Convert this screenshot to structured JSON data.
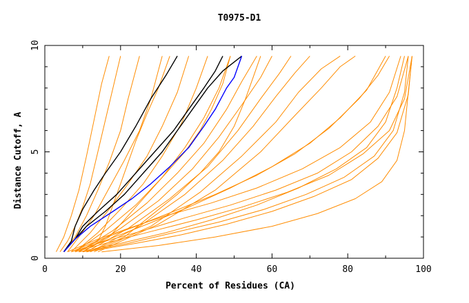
{
  "chart_data": {
    "type": "line",
    "title": "T0975-D1",
    "xlabel": "Percent of Residues (CA)",
    "ylabel": "Distance Cutoff, A",
    "xlim": [
      0,
      100
    ],
    "ylim": [
      0,
      10
    ],
    "x_ticks": [
      0,
      20,
      40,
      60,
      80,
      100
    ],
    "y_ticks": [
      0,
      5,
      10
    ],
    "grid": false,
    "colors": {
      "background_models": "#ff8c00",
      "highlight": "#000000",
      "best": "#0000ff"
    },
    "series": [
      {
        "color": "#ff8c00",
        "points": [
          [
            4,
            0.3
          ],
          [
            6,
            0.8
          ],
          [
            8,
            1.5
          ],
          [
            10,
            2.4
          ],
          [
            12,
            3.5
          ],
          [
            14,
            5.0
          ],
          [
            16,
            6.5
          ],
          [
            18,
            8.0
          ],
          [
            20,
            9.5
          ]
        ]
      },
      {
        "color": "#ff8c00",
        "points": [
          [
            3,
            0.3
          ],
          [
            5,
            1.0
          ],
          [
            7,
            2.0
          ],
          [
            9,
            3.2
          ],
          [
            11,
            4.8
          ],
          [
            13,
            6.5
          ],
          [
            15,
            8.2
          ],
          [
            17,
            9.5
          ]
        ]
      },
      {
        "color": "#ff8c00",
        "points": [
          [
            5,
            0.3
          ],
          [
            8,
            1.0
          ],
          [
            11,
            2.0
          ],
          [
            14,
            3.2
          ],
          [
            17,
            4.5
          ],
          [
            20,
            6.0
          ],
          [
            22,
            7.5
          ],
          [
            25,
            9.5
          ]
        ]
      },
      {
        "color": "#ff8c00",
        "points": [
          [
            6,
            0.3
          ],
          [
            9,
            1.0
          ],
          [
            13,
            2.0
          ],
          [
            17,
            3.3
          ],
          [
            21,
            4.6
          ],
          [
            25,
            6.0
          ],
          [
            28,
            7.5
          ],
          [
            31,
            9.5
          ]
        ]
      },
      {
        "color": "#ff8c00",
        "points": [
          [
            7,
            0.3
          ],
          [
            12,
            1.2
          ],
          [
            17,
            2.3
          ],
          [
            22,
            3.5
          ],
          [
            27,
            4.8
          ],
          [
            31,
            6.2
          ],
          [
            35,
            7.8
          ],
          [
            38,
            9.5
          ]
        ]
      },
      {
        "color": "#ff8c00",
        "points": [
          [
            8,
            0.3
          ],
          [
            14,
            1.2
          ],
          [
            20,
            2.3
          ],
          [
            26,
            3.5
          ],
          [
            31,
            4.8
          ],
          [
            36,
            6.3
          ],
          [
            40,
            8.0
          ],
          [
            43,
            9.5
          ]
        ]
      },
      {
        "color": "#ff8c00",
        "points": [
          [
            8,
            0.3
          ],
          [
            16,
            1.3
          ],
          [
            24,
            2.5
          ],
          [
            31,
            3.8
          ],
          [
            37,
            5.2
          ],
          [
            42,
            6.6
          ],
          [
            46,
            8.0
          ],
          [
            49,
            9.5
          ]
        ]
      },
      {
        "color": "#ff8c00",
        "points": [
          [
            9,
            0.3
          ],
          [
            18,
            1.3
          ],
          [
            27,
            2.6
          ],
          [
            35,
            4.0
          ],
          [
            42,
            5.4
          ],
          [
            48,
            7.0
          ],
          [
            52,
            8.3
          ],
          [
            56,
            9.5
          ]
        ]
      },
      {
        "color": "#ff8c00",
        "points": [
          [
            10,
            0.3
          ],
          [
            20,
            1.4
          ],
          [
            30,
            2.7
          ],
          [
            39,
            4.2
          ],
          [
            46,
            5.7
          ],
          [
            52,
            7.2
          ],
          [
            57,
            8.5
          ],
          [
            60,
            9.5
          ]
        ]
      },
      {
        "color": "#ff8c00",
        "points": [
          [
            11,
            0.3
          ],
          [
            22,
            1.4
          ],
          [
            33,
            2.8
          ],
          [
            43,
            4.3
          ],
          [
            51,
            6.0
          ],
          [
            57,
            7.5
          ],
          [
            62,
            8.7
          ],
          [
            65,
            9.5
          ]
        ]
      },
      {
        "color": "#ff8c00",
        "points": [
          [
            12,
            0.3
          ],
          [
            25,
            1.5
          ],
          [
            37,
            3.0
          ],
          [
            47,
            4.6
          ],
          [
            55,
            6.2
          ],
          [
            61,
            7.6
          ],
          [
            66,
            8.7
          ],
          [
            70,
            9.5
          ]
        ]
      },
      {
        "color": "#ff8c00",
        "points": [
          [
            13,
            0.3
          ],
          [
            28,
            1.5
          ],
          [
            41,
            3.1
          ],
          [
            52,
            4.8
          ],
          [
            61,
            6.4
          ],
          [
            67,
            7.8
          ],
          [
            73,
            8.9
          ],
          [
            78,
            9.5
          ]
        ]
      },
      {
        "color": "#ff8c00",
        "points": [
          [
            14,
            0.3
          ],
          [
            30,
            1.6
          ],
          [
            45,
            3.2
          ],
          [
            57,
            5.0
          ],
          [
            66,
            6.7
          ],
          [
            73,
            8.0
          ],
          [
            78,
            9.0
          ],
          [
            82,
            9.5
          ]
        ]
      },
      {
        "color": "#ff8c00",
        "points": [
          [
            6,
            0.3
          ],
          [
            14,
            0.9
          ],
          [
            22,
            1.4
          ],
          [
            32,
            2.0
          ],
          [
            44,
            2.6
          ],
          [
            56,
            3.3
          ],
          [
            68,
            4.2
          ],
          [
            78,
            5.2
          ],
          [
            86,
            6.4
          ],
          [
            91,
            7.8
          ],
          [
            94,
            9.5
          ]
        ]
      },
      {
        "color": "#ff8c00",
        "points": [
          [
            7,
            0.3
          ],
          [
            16,
            0.8
          ],
          [
            26,
            1.3
          ],
          [
            37,
            1.9
          ],
          [
            49,
            2.5
          ],
          [
            61,
            3.2
          ],
          [
            72,
            4.0
          ],
          [
            81,
            5.0
          ],
          [
            88,
            6.2
          ],
          [
            93,
            7.6
          ],
          [
            96,
            9.5
          ]
        ]
      },
      {
        "color": "#ff8c00",
        "points": [
          [
            8,
            0.3
          ],
          [
            18,
            0.8
          ],
          [
            29,
            1.3
          ],
          [
            40,
            1.8
          ],
          [
            52,
            2.4
          ],
          [
            64,
            3.1
          ],
          [
            75,
            3.9
          ],
          [
            84,
            4.9
          ],
          [
            91,
            6.0
          ],
          [
            95,
            7.5
          ],
          [
            97,
            9.5
          ]
        ]
      },
      {
        "color": "#ff8c00",
        "points": [
          [
            9,
            0.3
          ],
          [
            20,
            0.7
          ],
          [
            32,
            1.2
          ],
          [
            44,
            1.8
          ],
          [
            56,
            2.5
          ],
          [
            67,
            3.3
          ],
          [
            77,
            4.2
          ],
          [
            85,
            5.2
          ],
          [
            90,
            6.4
          ],
          [
            93,
            8.0
          ],
          [
            95,
            9.5
          ]
        ]
      },
      {
        "color": "#ff8c00",
        "points": [
          [
            10,
            0.3
          ],
          [
            22,
            0.7
          ],
          [
            34,
            1.2
          ],
          [
            46,
            1.7
          ],
          [
            58,
            2.3
          ],
          [
            69,
            3.0
          ],
          [
            79,
            3.8
          ],
          [
            87,
            4.8
          ],
          [
            92,
            6.0
          ],
          [
            95,
            7.8
          ],
          [
            96,
            9.5
          ]
        ]
      },
      {
        "color": "#ff8c00",
        "points": [
          [
            11,
            0.3
          ],
          [
            24,
            0.7
          ],
          [
            36,
            1.1
          ],
          [
            48,
            1.6
          ],
          [
            60,
            2.2
          ],
          [
            71,
            2.9
          ],
          [
            81,
            3.7
          ],
          [
            88,
            4.7
          ],
          [
            93,
            5.9
          ],
          [
            96,
            7.7
          ],
          [
            97,
            9.5
          ]
        ]
      },
      {
        "color": "#ff8c00",
        "points": [
          [
            7,
            0.3
          ],
          [
            15,
            0.9
          ],
          [
            24,
            1.5
          ],
          [
            34,
            2.2
          ],
          [
            45,
            3.0
          ],
          [
            56,
            3.9
          ],
          [
            66,
            4.9
          ],
          [
            75,
            6.1
          ],
          [
            83,
            7.5
          ],
          [
            88,
            8.6
          ],
          [
            91,
            9.5
          ]
        ]
      },
      {
        "color": "#ff8c00",
        "points": [
          [
            8,
            0.3
          ],
          [
            17,
            0.9
          ],
          [
            27,
            1.6
          ],
          [
            38,
            2.4
          ],
          [
            49,
            3.3
          ],
          [
            60,
            4.3
          ],
          [
            70,
            5.4
          ],
          [
            78,
            6.6
          ],
          [
            85,
            7.9
          ],
          [
            90,
            9.5
          ]
        ]
      },
      {
        "color": "#ff8c00",
        "points": [
          [
            15,
            0.3
          ],
          [
            30,
            0.6
          ],
          [
            45,
            1.0
          ],
          [
            60,
            1.5
          ],
          [
            72,
            2.1
          ],
          [
            82,
            2.8
          ],
          [
            89,
            3.6
          ],
          [
            93,
            4.6
          ],
          [
            95,
            6.0
          ],
          [
            96,
            7.8
          ],
          [
            97,
            9.5
          ]
        ]
      },
      {
        "color": "#ff8c00",
        "points": [
          [
            9,
            0.3
          ],
          [
            14,
            0.8
          ],
          [
            16,
            1.5
          ],
          [
            18,
            2.5
          ],
          [
            20,
            3.5
          ],
          [
            22,
            4.5
          ],
          [
            24,
            5.5
          ],
          [
            27,
            6.8
          ],
          [
            30,
            8.0
          ],
          [
            33,
            9.5
          ]
        ]
      },
      {
        "color": "#ff8c00",
        "points": [
          [
            10,
            0.3
          ],
          [
            17,
            1.0
          ],
          [
            22,
            2.0
          ],
          [
            27,
            3.0
          ],
          [
            32,
            4.0
          ],
          [
            37,
            5.0
          ],
          [
            41,
            6.0
          ],
          [
            44,
            7.0
          ],
          [
            47,
            8.2
          ],
          [
            49,
            9.5
          ]
        ]
      },
      {
        "color": "#ff8c00",
        "points": [
          [
            12,
            0.3
          ],
          [
            21,
            1.0
          ],
          [
            28,
            2.0
          ],
          [
            35,
            3.0
          ],
          [
            41,
            4.0
          ],
          [
            46,
            5.0
          ],
          [
            50,
            6.2
          ],
          [
            53,
            7.5
          ],
          [
            55,
            8.5
          ],
          [
            57,
            9.5
          ]
        ]
      },
      {
        "color": "#000000",
        "points": [
          [
            5,
            0.3
          ],
          [
            7,
            0.8
          ],
          [
            8,
            1.5
          ],
          [
            10,
            2.3
          ],
          [
            13,
            3.2
          ],
          [
            16,
            4.0
          ],
          [
            20,
            5.0
          ],
          [
            24,
            6.2
          ],
          [
            28,
            7.5
          ],
          [
            32,
            8.6
          ],
          [
            35,
            9.5
          ]
        ]
      },
      {
        "color": "#000000",
        "points": [
          [
            5,
            0.3
          ],
          [
            8,
            0.9
          ],
          [
            10,
            1.5
          ],
          [
            14,
            2.2
          ],
          [
            19,
            3.0
          ],
          [
            24,
            4.0
          ],
          [
            29,
            5.0
          ],
          [
            34,
            6.0
          ],
          [
            38,
            7.0
          ],
          [
            42,
            8.0
          ],
          [
            45,
            8.8
          ],
          [
            47,
            9.5
          ]
        ]
      },
      {
        "color": "#000000",
        "points": [
          [
            5,
            0.3
          ],
          [
            8,
            0.9
          ],
          [
            11,
            1.5
          ],
          [
            16,
            2.2
          ],
          [
            21,
            3.0
          ],
          [
            26,
            4.0
          ],
          [
            31,
            5.0
          ],
          [
            35,
            6.0
          ],
          [
            39,
            7.0
          ],
          [
            43,
            8.0
          ],
          [
            47,
            8.8
          ],
          [
            52,
            9.5
          ]
        ]
      },
      {
        "color": "#0000ff",
        "points": [
          [
            5,
            0.3
          ],
          [
            8,
            0.9
          ],
          [
            12,
            1.5
          ],
          [
            18,
            2.2
          ],
          [
            23,
            2.8
          ],
          [
            28,
            3.5
          ],
          [
            33,
            4.3
          ],
          [
            38,
            5.2
          ],
          [
            42,
            6.2
          ],
          [
            45,
            7.0
          ],
          [
            48,
            8.0
          ],
          [
            50,
            8.5
          ],
          [
            52,
            9.5
          ]
        ]
      }
    ]
  }
}
